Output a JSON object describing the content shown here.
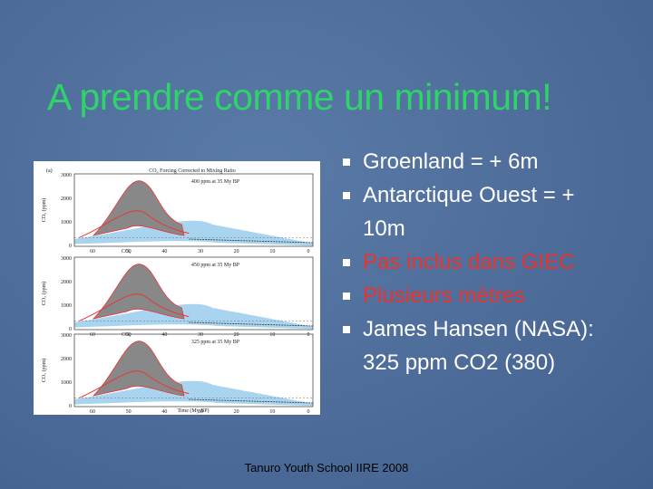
{
  "title": "A prendre comme un minimum!",
  "bullets": [
    {
      "text": "Groenland = + 6m",
      "color": "white"
    },
    {
      "text": "Antarctique Ouest = + 10m",
      "color": "white"
    },
    {
      "text": "Pas inclus dans GIEC",
      "color": "red"
    },
    {
      "text": "Plusieurs mètres",
      "color": "red"
    },
    {
      "text": "James Hansen (NASA): 325 ppm CO2 (380)",
      "color": "white"
    }
  ],
  "figure": {
    "label": "(a)",
    "title": "CO₂ Forcing Corrected to Mixing Ratio",
    "y_label": "CO₂ (ppm)",
    "y_ticks": [
      "3000",
      "2000",
      "1000",
      "0"
    ],
    "x_ticks": [
      "60",
      "50",
      "40",
      "30",
      "20",
      "10",
      "0"
    ],
    "x_label": "Time (My BP)",
    "co2_marker": "CO₂",
    "panels": [
      {
        "note": "400 ppm at 35 My BP"
      },
      {
        "note": "450 ppm at 35 My BP"
      },
      {
        "note": "325 ppm at 35 My BP"
      }
    ]
  },
  "footer": "Tanuro Youth School IIRE 2008"
}
